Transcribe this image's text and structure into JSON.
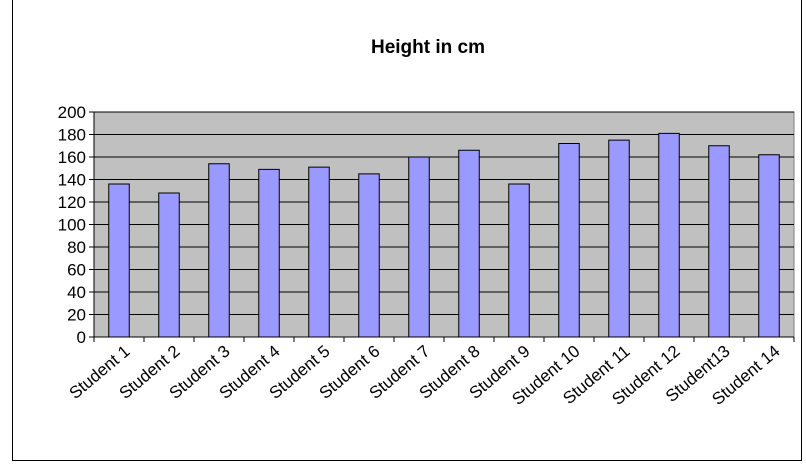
{
  "chart_data": {
    "type": "bar",
    "title": "Height in cm",
    "xlabel": "",
    "ylabel": "",
    "ylim": [
      0,
      200
    ],
    "y_ticks": [
      "0",
      "20",
      "40",
      "60",
      "80",
      "100",
      "120",
      "140",
      "160",
      "180",
      "200"
    ],
    "grid": true,
    "legend": "none",
    "categories": [
      "Student 1",
      "Student 2",
      "Student 3",
      "Student 4",
      "Student 5",
      "Student 6",
      "Student 7",
      "Student 8",
      "Student 9",
      "Student 10",
      "Student 11",
      "Student 12",
      "Student13",
      "Student 14"
    ],
    "values": [
      136,
      128,
      154,
      149,
      151,
      145,
      160,
      166,
      136,
      172,
      175,
      181,
      170,
      162
    ],
    "colors": {
      "bar": "#9999ff",
      "plot_bg": "#c0c0c0",
      "grid": "#000000"
    }
  }
}
